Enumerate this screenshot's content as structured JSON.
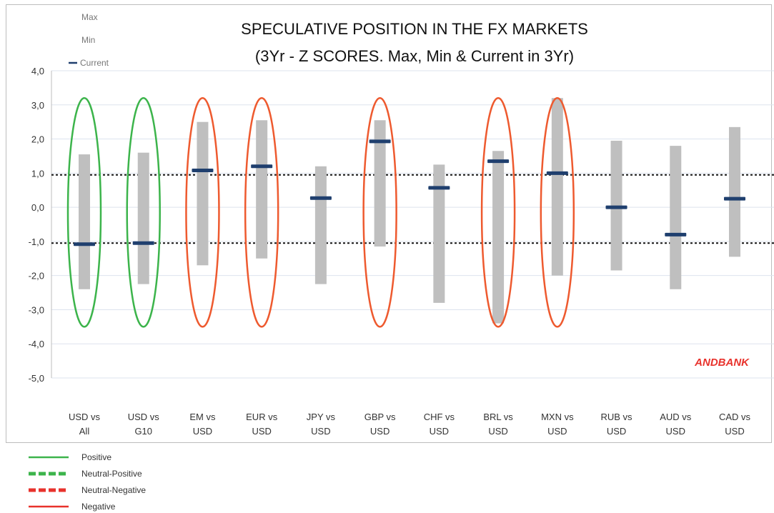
{
  "chart_data": {
    "type": "range-bar",
    "title": "SPECULATIVE POSITION IN THE FX MARKETS",
    "subtitle": "(3Yr - Z SCORES. Max, Min & Current in 3Yr)",
    "ylim": [
      -5.0,
      4.0
    ],
    "yticks": [
      "4,0",
      "3,0",
      "2,0",
      "1,0",
      "0,0",
      "-1,0",
      "-2,0",
      "-3,0",
      "-4,0",
      "-5,0"
    ],
    "reference_lines": [
      0.95,
      -1.05
    ],
    "categories": [
      [
        "USD vs",
        "All"
      ],
      [
        "USD vs",
        "G10"
      ],
      [
        "EM vs",
        "USD"
      ],
      [
        "EUR vs",
        "USD"
      ],
      [
        "JPY vs",
        "USD"
      ],
      [
        "GBP vs",
        "USD"
      ],
      [
        "CHF vs",
        "USD"
      ],
      [
        "BRL vs",
        "USD"
      ],
      [
        "MXN vs",
        "USD"
      ],
      [
        "RUB vs",
        "USD"
      ],
      [
        "AUD vs",
        "USD"
      ],
      [
        "CAD vs",
        "USD"
      ]
    ],
    "series": [
      {
        "name": "Max",
        "values": [
          1.55,
          1.6,
          2.5,
          2.55,
          1.2,
          2.55,
          1.25,
          1.65,
          3.2,
          1.95,
          1.8,
          2.35
        ]
      },
      {
        "name": "Min",
        "values": [
          -2.4,
          -2.25,
          -1.7,
          -1.5,
          -2.25,
          -1.15,
          -2.8,
          -3.4,
          -2.0,
          -1.85,
          -2.4,
          -1.45
        ]
      },
      {
        "name": "Current",
        "values": [
          -1.08,
          -1.05,
          1.08,
          1.2,
          0.27,
          1.93,
          0.57,
          1.35,
          1.0,
          0.0,
          -0.8,
          0.25
        ]
      }
    ],
    "sentiment": [
      "Positive",
      "Positive",
      "Negative",
      "Negative",
      "",
      "Negative",
      "",
      "Negative",
      "Negative",
      "",
      "",
      ""
    ],
    "colors": {
      "range_bar": "#bfbfbf",
      "current": "#1f3f6e",
      "positive": "#3cb44b",
      "negative": "#ee5a2f",
      "source": "#e8322c",
      "gridline": "#dde3ee"
    },
    "chart_legend": [
      "Max",
      "Min",
      "Current"
    ],
    "source_label": "ANDBANK"
  },
  "sentiment_legend": [
    {
      "label": "Positive",
      "color": "#3cb44b",
      "style": "solid"
    },
    {
      "label": "Neutral-Positive",
      "color": "#3cb44b",
      "style": "dashed"
    },
    {
      "label": "Neutral-Negative",
      "color": "#e8322c",
      "style": "dashed"
    },
    {
      "label": "Negative",
      "color": "#e8322c",
      "style": "solid"
    }
  ]
}
